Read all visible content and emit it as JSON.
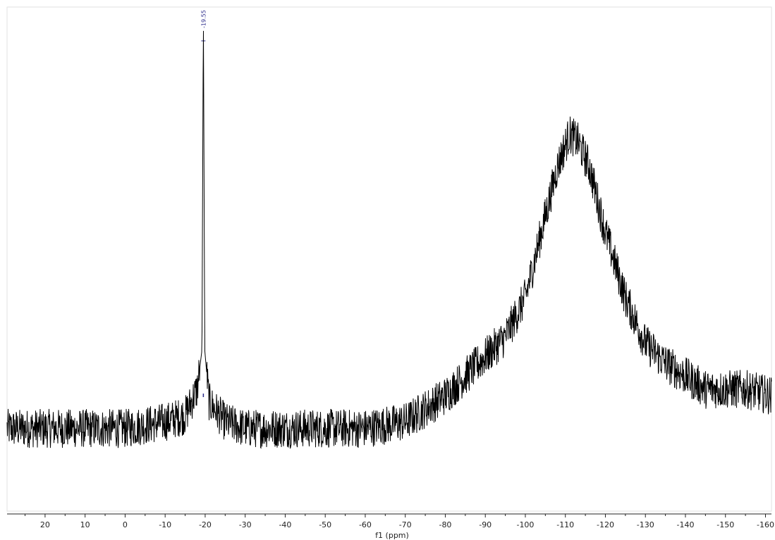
{
  "chart_data": {
    "type": "line",
    "xlabel": "f1 (ppm)",
    "ylabel": "",
    "title": "",
    "xlim": [
      29.5,
      -161.5
    ],
    "x_reversed": true,
    "xticks": [
      {
        "value": 20,
        "label": "20"
      },
      {
        "value": 10,
        "label": "10"
      },
      {
        "value": 0,
        "label": "0"
      },
      {
        "value": -10,
        "label": "-10"
      },
      {
        "value": -20,
        "label": "-20"
      },
      {
        "value": -30,
        "label": "-30"
      },
      {
        "value": -40,
        "label": "-40"
      },
      {
        "value": -50,
        "label": "-50"
      },
      {
        "value": -60,
        "label": "-60"
      },
      {
        "value": -70,
        "label": "-70"
      },
      {
        "value": -80,
        "label": "-80"
      },
      {
        "value": -90,
        "label": "-90"
      },
      {
        "value": -100,
        "label": "-100"
      },
      {
        "value": -110,
        "label": "-110"
      },
      {
        "value": -120,
        "label": "-120"
      },
      {
        "value": -130,
        "label": "-130"
      },
      {
        "value": -140,
        "label": "-140"
      },
      {
        "value": -150,
        "label": "-150"
      },
      {
        "value": -160,
        "label": "-160"
      }
    ],
    "grid": false,
    "line_color": "#000000",
    "peak_color": "#2a2a8a",
    "series": [
      {
        "x": [
          29.5,
          20,
          10,
          0,
          -10,
          -15,
          -18,
          -19.2,
          -19.55,
          -19.9,
          -21,
          -25,
          -30,
          -40,
          -50,
          -60,
          -70,
          -80,
          -85,
          -90,
          -95,
          -100,
          -104,
          -108,
          -111,
          -113,
          -116,
          -120,
          -125,
          -130,
          -135,
          -140,
          -145,
          -150,
          -155,
          -161.5
        ],
        "y": [
          0.06,
          0.06,
          0.06,
          0.06,
          0.065,
          0.07,
          0.09,
          0.12,
          0.38,
          0.12,
          0.08,
          0.065,
          0.06,
          0.06,
          0.06,
          0.06,
          0.065,
          0.085,
          0.1,
          0.115,
          0.13,
          0.16,
          0.21,
          0.26,
          0.285,
          0.28,
          0.26,
          0.21,
          0.16,
          0.125,
          0.11,
          0.1,
          0.09,
          0.09,
          0.09,
          0.085
        ]
      }
    ],
    "peaks": [
      {
        "ppm": -19.55,
        "label": "-19.55"
      }
    ]
  }
}
